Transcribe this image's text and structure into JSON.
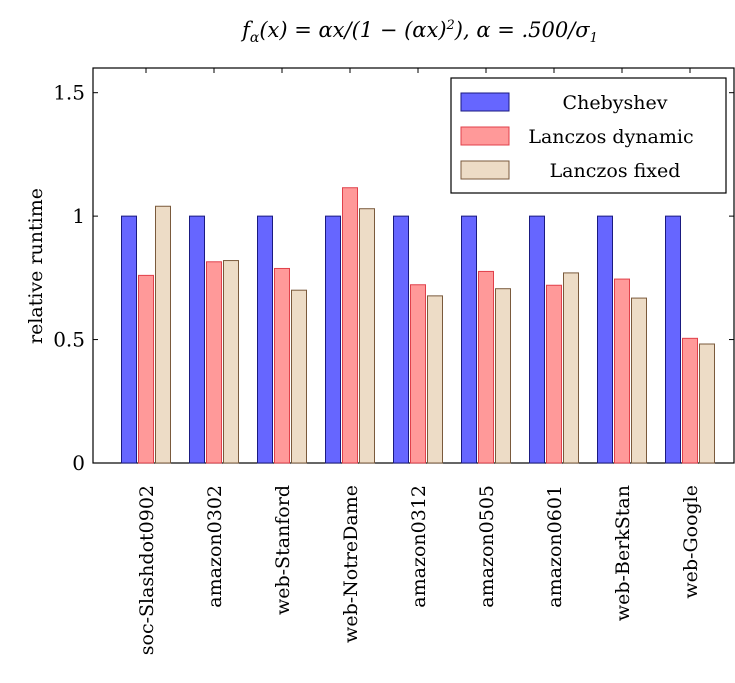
{
  "chart_data": {
    "type": "bar",
    "title_parts": {
      "f": "f",
      "sub": "α",
      "eq": "(x) = αx/(1 − (αx)",
      "sup": "2",
      "tail": "), α = .500/σ",
      "sub2": "1"
    },
    "ylabel": "relative runtime",
    "xlabel": "",
    "ylim": [
      0,
      1.6
    ],
    "yticks": [
      0,
      0.5,
      1,
      1.5
    ],
    "ytick_labels": [
      "0",
      "0.5",
      "1",
      "1.5"
    ],
    "categories": [
      "soc-Slashdot0902",
      "amazon0302",
      "web-Stanford",
      "web-NotreDame",
      "amazon0312",
      "amazon0505",
      "amazon0601",
      "web-BerkStan",
      "web-Google"
    ],
    "series": [
      {
        "name": "Chebyshev",
        "fill": "#6666ff",
        "stroke": "#1a1a80",
        "values": [
          1,
          1,
          1,
          1,
          1,
          1,
          1,
          1,
          1
        ]
      },
      {
        "name": "Lanczos dynamic",
        "fill": "#ff9999",
        "stroke": "#e0404a",
        "values": [
          0.76,
          0.815,
          0.788,
          1.115,
          0.722,
          0.776,
          0.72,
          0.745,
          0.505
        ]
      },
      {
        "name": "Lanczos fixed",
        "fill": "#eddcc6",
        "stroke": "#7a5a3c",
        "values": [
          1.04,
          0.82,
          0.7,
          1.03,
          0.677,
          0.706,
          0.77,
          0.668,
          0.482
        ]
      }
    ],
    "legend_position": "top-right",
    "grid": false
  }
}
